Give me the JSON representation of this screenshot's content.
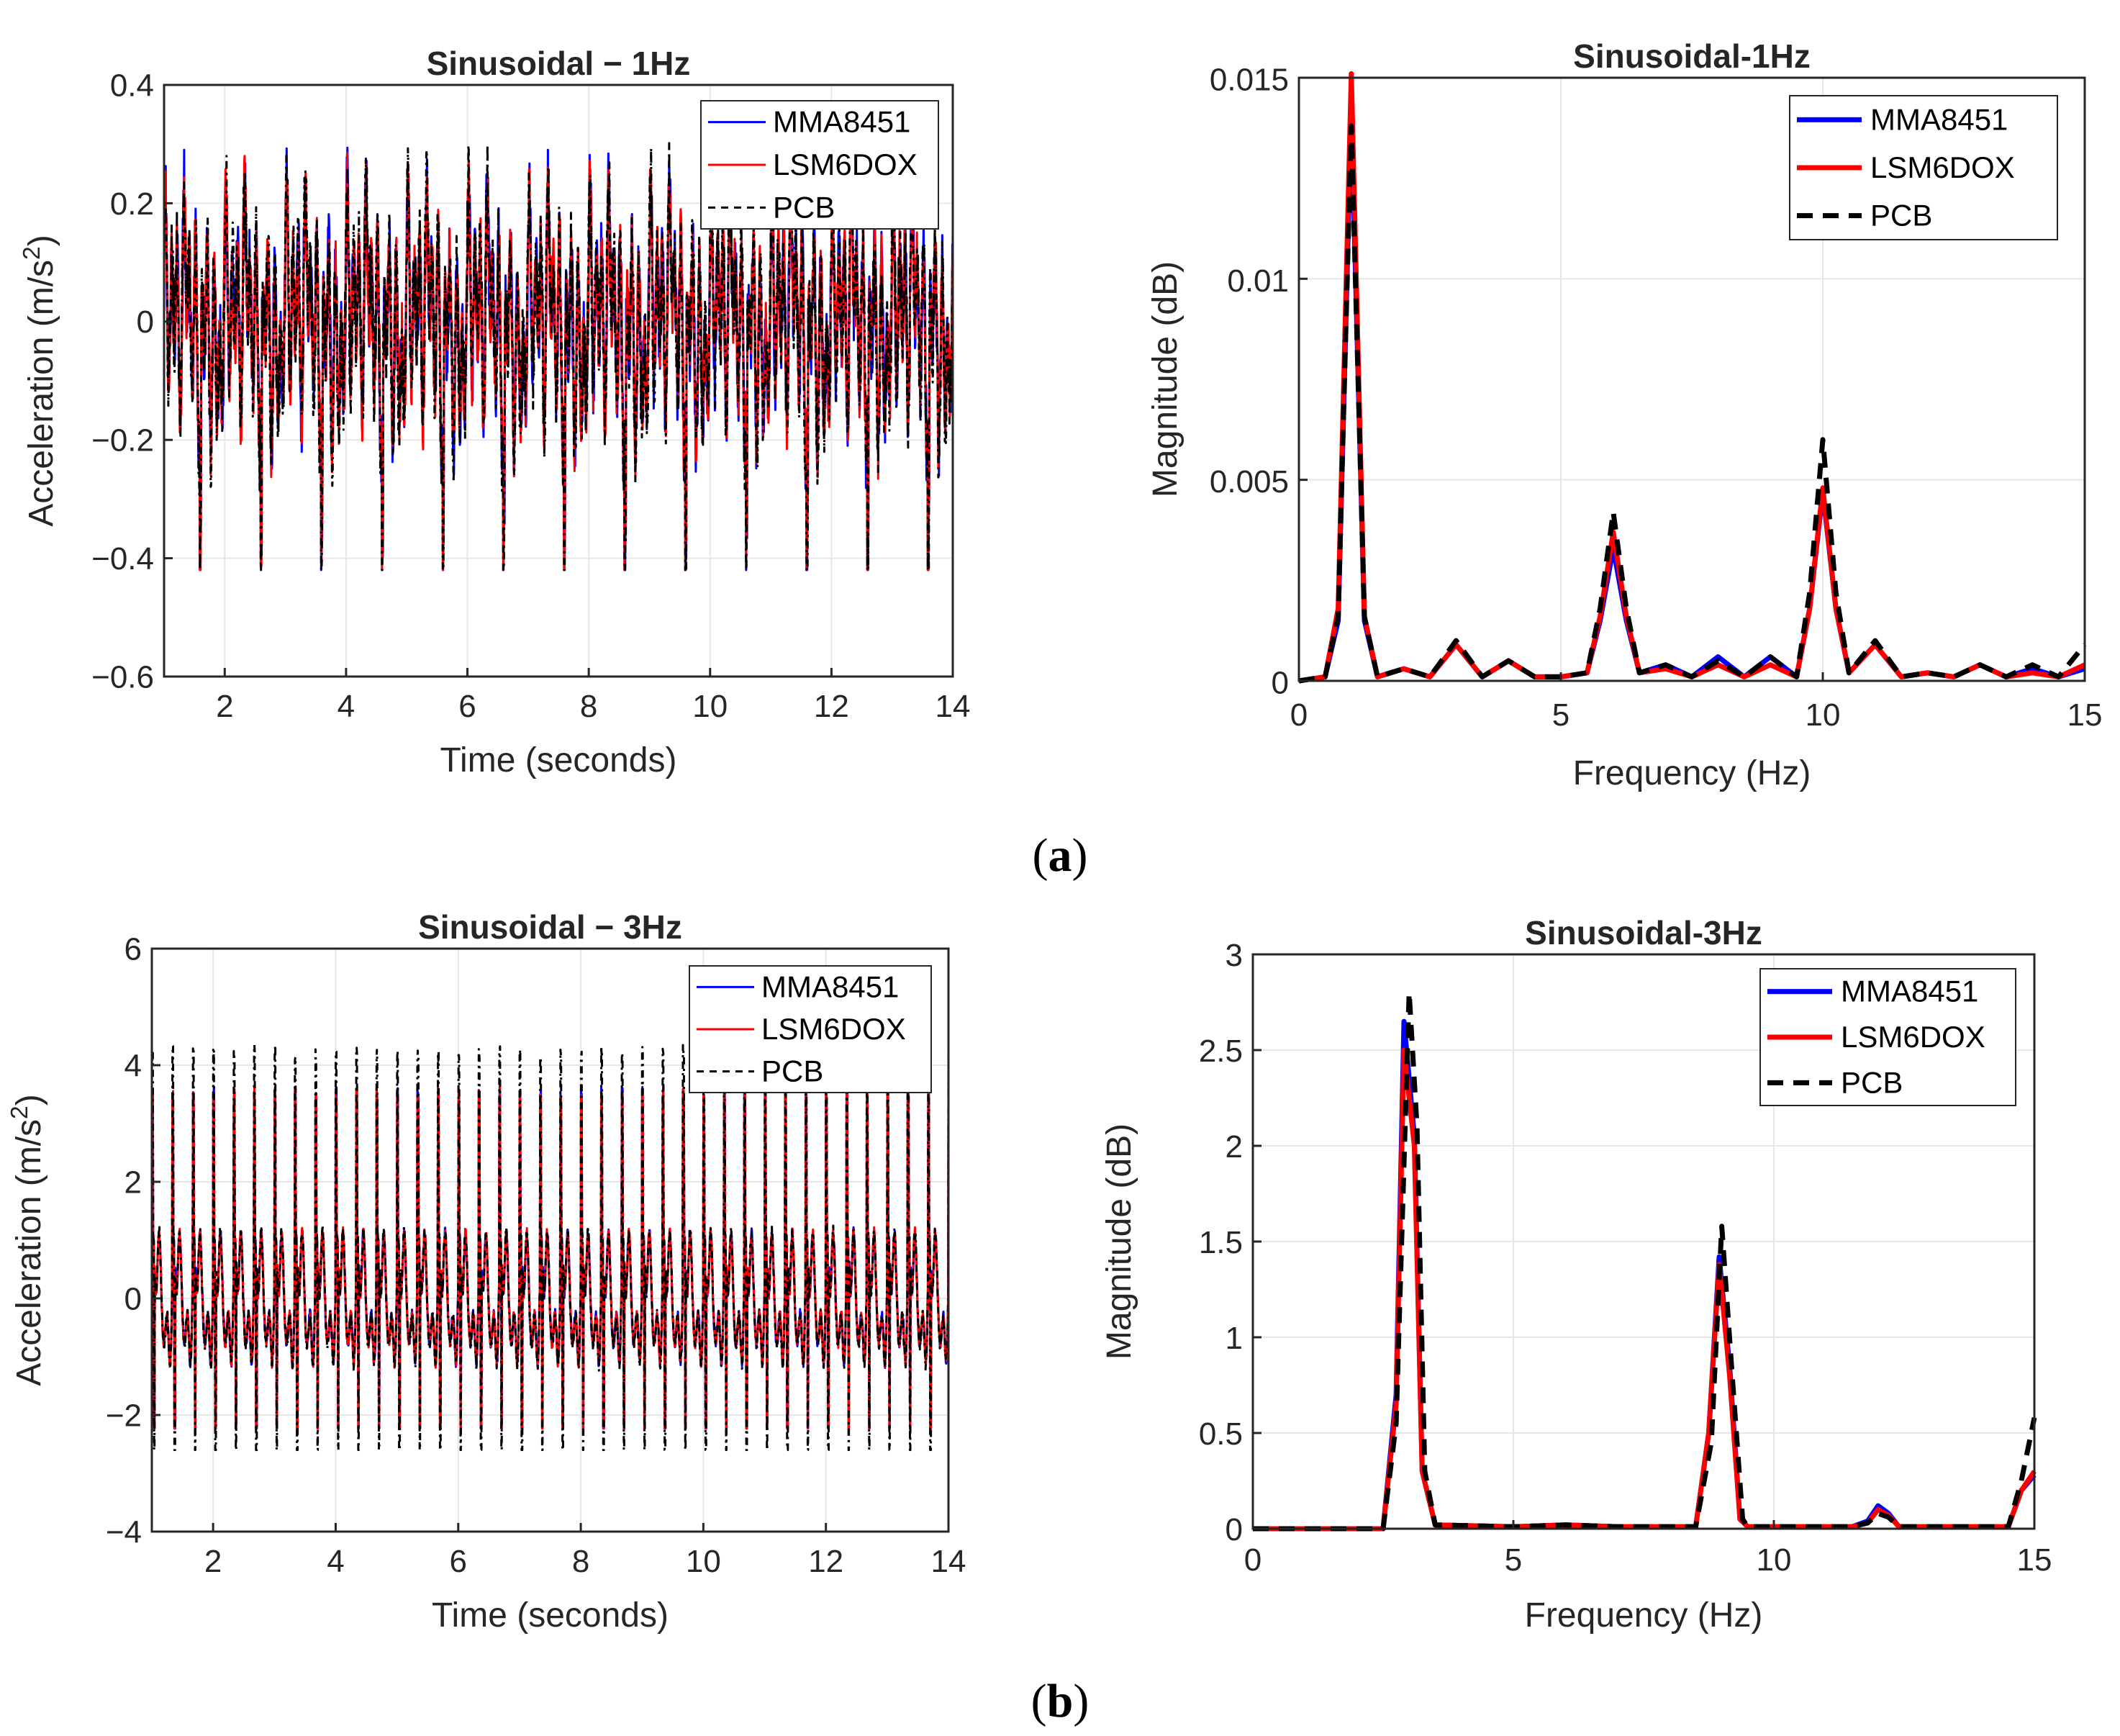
{
  "colors": {
    "mma": "#0000ff",
    "lsm": "#ff0000",
    "pcb": "#000000",
    "grid": "#e6e6e6",
    "axis": "#262626"
  },
  "legend": [
    "MMA8451",
    "LSM6DOX",
    "PCB"
  ],
  "captions": {
    "a": "a",
    "b": "b"
  },
  "chart_data": [
    {
      "id": "a-time",
      "type": "line",
      "title": "Sinusoidal − 1Hz",
      "xlabel": "Time (seconds)",
      "ylabel_prefix": "Acceleration (m/s",
      "ylabel_sup": "2",
      "ylabel_suffix": ")",
      "xlim": [
        1,
        14
      ],
      "ylim": [
        -0.6,
        0.4
      ],
      "xticks": [
        2,
        4,
        6,
        8,
        10,
        12,
        14
      ],
      "yticks": [
        -0.6,
        -0.4,
        -0.2,
        0,
        0.2,
        0.4
      ],
      "xtick_labels": [
        "2",
        "4",
        "6",
        "8",
        "10",
        "12",
        "14"
      ],
      "ytick_labels": [
        "−0.6",
        "−0.4",
        "−0.2",
        "0",
        "0.2",
        "0.4"
      ],
      "signal": {
        "fundamental_hz": 1,
        "harmonics_hz": [
          1,
          3,
          6,
          10
        ],
        "positive_peak_approx": 0.32,
        "negative_peak_approx": -0.41
      },
      "series": [
        {
          "name": "MMA8451",
          "style": "solid"
        },
        {
          "name": "LSM6DOX",
          "style": "solid"
        },
        {
          "name": "PCB",
          "style": "dashdot"
        }
      ]
    },
    {
      "id": "a-freq",
      "type": "line",
      "title": "Sinusoidal-1Hz",
      "xlabel": "Frequency (Hz)",
      "ylabel": "Magnitude (dB)",
      "xlim": [
        0,
        15
      ],
      "ylim": [
        0,
        0.015
      ],
      "xticks": [
        0,
        5,
        10,
        15
      ],
      "yticks": [
        0,
        0.005,
        0.01,
        0.015
      ],
      "xtick_labels": [
        "0",
        "5",
        "10",
        "15"
      ],
      "ytick_labels": [
        "0",
        "0.005",
        "0.01",
        "0.015"
      ],
      "series": [
        {
          "name": "MMA8451",
          "style": "solid",
          "points": [
            [
              0,
              0
            ],
            [
              0.5,
              0.0001
            ],
            [
              0.75,
              0.0015
            ],
            [
              1,
              0.0142
            ],
            [
              1.25,
              0.0015
            ],
            [
              1.5,
              0.0001
            ],
            [
              2,
              0.0003
            ],
            [
              2.5,
              0.0001
            ],
            [
              3,
              0.0009
            ],
            [
              3.5,
              0.0001
            ],
            [
              4,
              0.0005
            ],
            [
              4.5,
              0.0001
            ],
            [
              5,
              0.0001
            ],
            [
              5.5,
              0.0002
            ],
            [
              5.75,
              0.0015
            ],
            [
              6,
              0.0033
            ],
            [
              6.25,
              0.0015
            ],
            [
              6.5,
              0.0002
            ],
            [
              7,
              0.0004
            ],
            [
              7.5,
              0.0001
            ],
            [
              8,
              0.0006
            ],
            [
              8.5,
              0.0001
            ],
            [
              9,
              0.0006
            ],
            [
              9.5,
              0.0001
            ],
            [
              9.75,
              0.0018
            ],
            [
              10,
              0.0047
            ],
            [
              10.25,
              0.0018
            ],
            [
              10.5,
              0.0002
            ],
            [
              11,
              0.0009
            ],
            [
              11.5,
              0.0001
            ],
            [
              12,
              0.0002
            ],
            [
              12.5,
              0.0001
            ],
            [
              13,
              0.0004
            ],
            [
              13.5,
              0.0001
            ],
            [
              14,
              0.0003
            ],
            [
              14.5,
              0.0001
            ],
            [
              15,
              0.0003
            ]
          ]
        },
        {
          "name": "LSM6DOX",
          "style": "solid",
          "points": [
            [
              0,
              0
            ],
            [
              0.5,
              0.0001
            ],
            [
              0.75,
              0.0018
            ],
            [
              1,
              0.0151
            ],
            [
              1.25,
              0.0016
            ],
            [
              1.5,
              0.0001
            ],
            [
              2,
              0.0003
            ],
            [
              2.5,
              0.0001
            ],
            [
              3,
              0.0009
            ],
            [
              3.5,
              0.0001
            ],
            [
              4,
              0.0005
            ],
            [
              4.5,
              0.0001
            ],
            [
              5,
              0.0001
            ],
            [
              5.5,
              0.0002
            ],
            [
              5.75,
              0.0016
            ],
            [
              6,
              0.0037
            ],
            [
              6.25,
              0.0016
            ],
            [
              6.5,
              0.0002
            ],
            [
              7,
              0.0003
            ],
            [
              7.5,
              0.0001
            ],
            [
              8,
              0.0004
            ],
            [
              8.5,
              0.0001
            ],
            [
              9,
              0.0004
            ],
            [
              9.5,
              0.0001
            ],
            [
              9.75,
              0.0018
            ],
            [
              10,
              0.0048
            ],
            [
              10.25,
              0.0018
            ],
            [
              10.5,
              0.0002
            ],
            [
              11,
              0.0009
            ],
            [
              11.5,
              0.0001
            ],
            [
              12,
              0.0002
            ],
            [
              12.5,
              0.0001
            ],
            [
              13,
              0.0004
            ],
            [
              13.5,
              0.0001
            ],
            [
              14,
              0.0002
            ],
            [
              14.5,
              0.0001
            ],
            [
              15,
              0.0004
            ]
          ]
        },
        {
          "name": "PCB",
          "style": "dashed",
          "points": [
            [
              0,
              0
            ],
            [
              0.5,
              0.0001
            ],
            [
              0.75,
              0.0016
            ],
            [
              1,
              0.0138
            ],
            [
              1.25,
              0.0016
            ],
            [
              1.5,
              0.0001
            ],
            [
              2,
              0.0003
            ],
            [
              2.5,
              0.0001
            ],
            [
              3,
              0.001
            ],
            [
              3.5,
              0.0001
            ],
            [
              4,
              0.0005
            ],
            [
              4.5,
              0.0001
            ],
            [
              5,
              0.0001
            ],
            [
              5.5,
              0.0002
            ],
            [
              5.75,
              0.0018
            ],
            [
              6,
              0.0042
            ],
            [
              6.25,
              0.0018
            ],
            [
              6.5,
              0.0002
            ],
            [
              7,
              0.0004
            ],
            [
              7.5,
              0.0001
            ],
            [
              8,
              0.0005
            ],
            [
              8.5,
              0.0001
            ],
            [
              9,
              0.0006
            ],
            [
              9.5,
              0.0001
            ],
            [
              9.75,
              0.0022
            ],
            [
              10,
              0.006
            ],
            [
              10.25,
              0.0022
            ],
            [
              10.5,
              0.0002
            ],
            [
              11,
              0.001
            ],
            [
              11.5,
              0.0001
            ],
            [
              12,
              0.0002
            ],
            [
              12.5,
              0.0001
            ],
            [
              13,
              0.0004
            ],
            [
              13.5,
              0.0001
            ],
            [
              14,
              0.0004
            ],
            [
              14.5,
              0.0001
            ],
            [
              15,
              0.0009
            ]
          ]
        }
      ]
    },
    {
      "id": "b-time",
      "type": "line",
      "title": "Sinusoidal − 3Hz",
      "xlabel": "Time (seconds)",
      "ylabel_prefix": "Acceleration (m/s",
      "ylabel_sup": "2",
      "ylabel_suffix": ")",
      "xlim": [
        1,
        14
      ],
      "ylim": [
        -4,
        6
      ],
      "xticks": [
        2,
        4,
        6,
        8,
        10,
        12,
        14
      ],
      "yticks": [
        -4,
        -2,
        0,
        2,
        4,
        6
      ],
      "xtick_labels": [
        "2",
        "4",
        "6",
        "8",
        "10",
        "12",
        "14"
      ],
      "ytick_labels": [
        "−4",
        "−2",
        "0",
        "2",
        "4",
        "6"
      ],
      "signal": {
        "fundamental_hz": 3,
        "harmonics_hz": [
          3,
          9,
          12,
          15
        ],
        "positive_peak_approx": 4.3,
        "negative_peak_approx": -2.7
      },
      "series": [
        {
          "name": "MMA8451",
          "style": "solid"
        },
        {
          "name": "LSM6DOX",
          "style": "solid"
        },
        {
          "name": "PCB",
          "style": "dashdot"
        }
      ]
    },
    {
      "id": "b-freq",
      "type": "line",
      "title": "Sinusoidal-3Hz",
      "xlabel": "Frequency (Hz)",
      "ylabel": "Magnitude (dB)",
      "xlim": [
        0,
        15
      ],
      "ylim": [
        0,
        3
      ],
      "xticks": [
        0,
        5,
        10,
        15
      ],
      "yticks": [
        0,
        0.5,
        1,
        1.5,
        2,
        2.5,
        3
      ],
      "xtick_labels": [
        "0",
        "5",
        "10",
        "15"
      ],
      "ytick_labels": [
        "0",
        "0.5",
        "1",
        "1.5",
        "2",
        "2.5",
        "3"
      ],
      "series": [
        {
          "name": "MMA8451",
          "style": "solid",
          "points": [
            [
              0,
              0
            ],
            [
              2.5,
              0
            ],
            [
              2.75,
              0.7
            ],
            [
              2.9,
              2.65
            ],
            [
              3.1,
              2.05
            ],
            [
              3.25,
              0.3
            ],
            [
              3.5,
              0.02
            ],
            [
              5,
              0.01
            ],
            [
              6,
              0.02
            ],
            [
              7,
              0.01
            ],
            [
              8.5,
              0.01
            ],
            [
              8.75,
              0.5
            ],
            [
              8.95,
              1.42
            ],
            [
              9.15,
              0.85
            ],
            [
              9.35,
              0.05
            ],
            [
              9.5,
              0.01
            ],
            [
              11.5,
              0.01
            ],
            [
              11.8,
              0.04
            ],
            [
              12,
              0.12
            ],
            [
              12.2,
              0.08
            ],
            [
              12.4,
              0.01
            ],
            [
              14.5,
              0.01
            ],
            [
              14.75,
              0.2
            ],
            [
              15,
              0.28
            ]
          ]
        },
        {
          "name": "LSM6DOX",
          "style": "solid",
          "points": [
            [
              0,
              0
            ],
            [
              2.5,
              0
            ],
            [
              2.75,
              0.65
            ],
            [
              2.9,
              2.5
            ],
            [
              3.1,
              2.0
            ],
            [
              3.25,
              0.3
            ],
            [
              3.5,
              0.02
            ],
            [
              5,
              0.01
            ],
            [
              6,
              0.02
            ],
            [
              7,
              0.01
            ],
            [
              8.5,
              0.01
            ],
            [
              8.75,
              0.5
            ],
            [
              8.95,
              1.38
            ],
            [
              9.15,
              0.8
            ],
            [
              9.35,
              0.05
            ],
            [
              9.5,
              0.01
            ],
            [
              11.5,
              0.01
            ],
            [
              11.8,
              0.03
            ],
            [
              12,
              0.1
            ],
            [
              12.2,
              0.07
            ],
            [
              12.4,
              0.01
            ],
            [
              14.5,
              0.01
            ],
            [
              14.75,
              0.2
            ],
            [
              15,
              0.3
            ]
          ]
        },
        {
          "name": "PCB",
          "style": "dashed",
          "points": [
            [
              0,
              0
            ],
            [
              2.5,
              0
            ],
            [
              2.75,
              0.55
            ],
            [
              3,
              2.8
            ],
            [
              3.15,
              2.1
            ],
            [
              3.3,
              0.3
            ],
            [
              3.5,
              0.02
            ],
            [
              5,
              0.01
            ],
            [
              6,
              0.02
            ],
            [
              7,
              0.01
            ],
            [
              8.5,
              0.01
            ],
            [
              8.8,
              0.45
            ],
            [
              9,
              1.58
            ],
            [
              9.2,
              0.8
            ],
            [
              9.4,
              0.05
            ],
            [
              9.5,
              0.01
            ],
            [
              11.5,
              0.01
            ],
            [
              11.8,
              0.03
            ],
            [
              12,
              0.08
            ],
            [
              12.2,
              0.06
            ],
            [
              12.4,
              0.01
            ],
            [
              14.5,
              0.01
            ],
            [
              14.75,
              0.25
            ],
            [
              15,
              0.58
            ]
          ]
        }
      ]
    }
  ]
}
